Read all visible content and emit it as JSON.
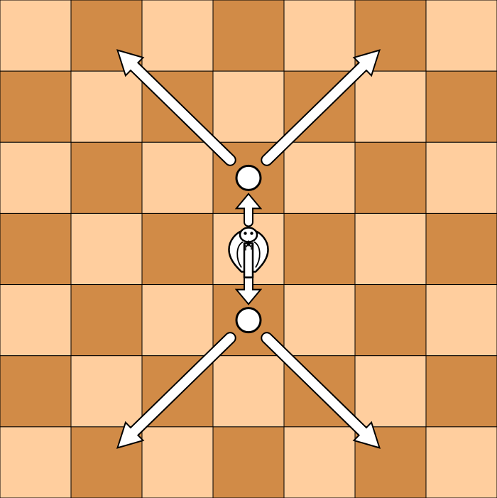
{
  "board": {
    "rows": 7,
    "cols": 7,
    "light_color": "#ffce9e",
    "dark_color": "#d18b47",
    "grid_line_color": "#000000",
    "first_square_light": true
  },
  "piece": {
    "name": "cobra",
    "icon": "cobra-icon",
    "color": "#ffffff",
    "outline": "#000000",
    "square": {
      "row": 3,
      "col": 3
    }
  },
  "move_targets": [
    {
      "row": 2,
      "col": 3
    },
    {
      "row": 4,
      "col": 3
    }
  ],
  "step_arrows": [
    {
      "from": {
        "row": 3,
        "col": 3
      },
      "to": {
        "row": 2,
        "col": 3
      },
      "label": "step-up"
    },
    {
      "from": {
        "row": 3,
        "col": 3
      },
      "to": {
        "row": 4,
        "col": 3
      },
      "label": "step-down"
    }
  ],
  "diagonal_arrows": [
    {
      "from": {
        "row": 2,
        "col": 3
      },
      "to": {
        "row": 0,
        "col": 1
      },
      "label": "up-left"
    },
    {
      "from": {
        "row": 2,
        "col": 3
      },
      "to": {
        "row": 0,
        "col": 5
      },
      "label": "up-right"
    },
    {
      "from": {
        "row": 4,
        "col": 3
      },
      "to": {
        "row": 6,
        "col": 1
      },
      "label": "down-left"
    },
    {
      "from": {
        "row": 4,
        "col": 3
      },
      "to": {
        "row": 6,
        "col": 5
      },
      "label": "down-right"
    }
  ],
  "arrow_color": "#ffffff",
  "arrow_outline": "#000000"
}
